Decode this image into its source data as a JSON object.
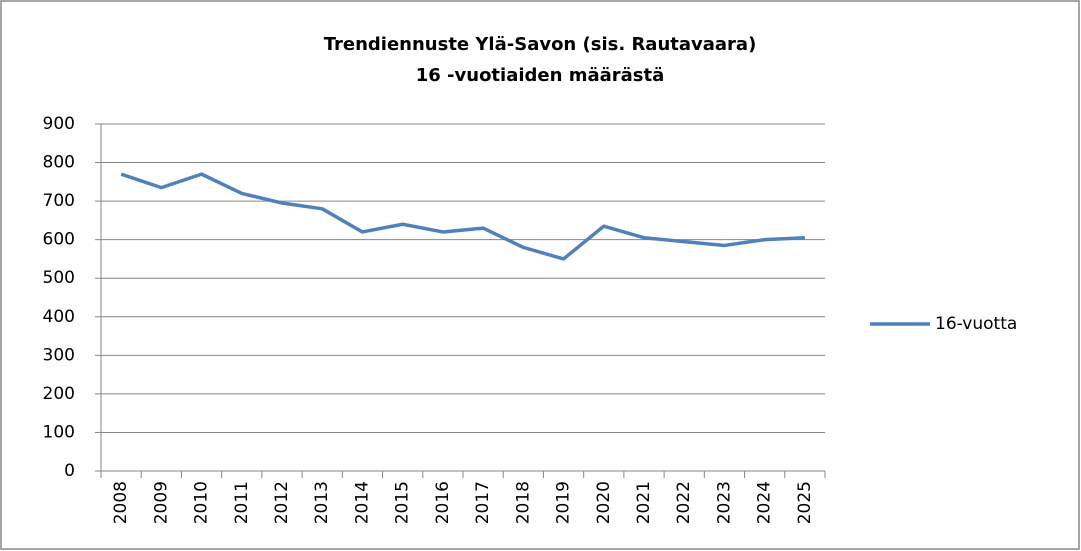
{
  "chart_data": {
    "type": "line",
    "title": [
      "Trendiennuste Ylä-Savon (sis. Rautavaara)",
      "16 -vuotiaiden määrästä"
    ],
    "categories": [
      "2008",
      "2009",
      "2010",
      "2011",
      "2012",
      "2013",
      "2014",
      "2015",
      "2016",
      "2017",
      "2018",
      "2019",
      "2020",
      "2021",
      "2022",
      "2023",
      "2024",
      "2025"
    ],
    "series": [
      {
        "name": "16-vuotta",
        "color": "#4f81bd",
        "values": [
          770,
          735,
          770,
          720,
          695,
          680,
          620,
          640,
          620,
          630,
          580,
          550,
          635,
          605,
          595,
          585,
          600,
          605
        ]
      }
    ],
    "ylim": [
      0,
      900
    ],
    "yticks": [
      0,
      100,
      200,
      300,
      400,
      500,
      600,
      700,
      800,
      900
    ],
    "grid": true,
    "legend": "right"
  }
}
